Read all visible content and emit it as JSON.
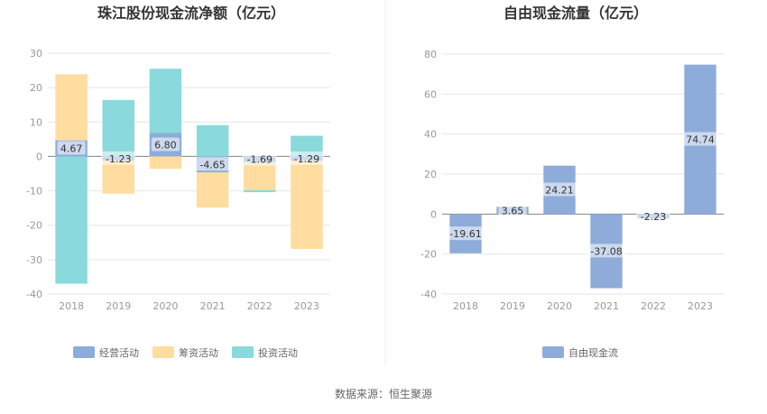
{
  "footer": {
    "source": "数据来源：恒生聚源"
  },
  "chart_data": [
    {
      "type": "bar",
      "stacked": true,
      "title": "珠江股份现金流净额（亿元）",
      "categories": [
        "2018",
        "2019",
        "2020",
        "2021",
        "2022",
        "2023"
      ],
      "ylim": [
        -40,
        30
      ],
      "yticks": [
        30,
        20,
        10,
        0,
        -10,
        -20,
        -30,
        -40
      ],
      "grid": true,
      "legend_position": "bottom",
      "series": [
        {
          "name": "经营活动",
          "color": "#8eacd9",
          "values": [
            4.67,
            -1.23,
            6.8,
            -4.65,
            -1.69,
            -1.29
          ],
          "labels": [
            "4.67",
            "-1.23",
            "6.80",
            "-4.65",
            "-1.69",
            "-1.29"
          ]
        },
        {
          "name": "筹资活动",
          "color": "#ffdca0",
          "values": [
            19.2,
            -9.6,
            -3.6,
            -10.2,
            -8.1,
            -25.6
          ]
        },
        {
          "name": "投资活动",
          "color": "#8ad9dc",
          "values": [
            -37.0,
            16.4,
            18.7,
            9.1,
            -0.6,
            6.0
          ]
        }
      ]
    },
    {
      "type": "bar",
      "title": "自由现金流量（亿元）",
      "categories": [
        "2018",
        "2019",
        "2020",
        "2021",
        "2022",
        "2023"
      ],
      "ylim": [
        -40,
        80
      ],
      "yticks": [
        80,
        60,
        40,
        20,
        0,
        -20,
        -40
      ],
      "grid": true,
      "legend_position": "bottom",
      "series": [
        {
          "name": "自由现金流",
          "color": "#8eacd9",
          "values": [
            -19.61,
            3.65,
            24.21,
            -37.08,
            -2.23,
            74.74
          ],
          "labels": [
            "-19.61",
            "3.65",
            "24.21",
            "-37.08",
            "-2.23",
            "74.74"
          ]
        }
      ]
    }
  ]
}
